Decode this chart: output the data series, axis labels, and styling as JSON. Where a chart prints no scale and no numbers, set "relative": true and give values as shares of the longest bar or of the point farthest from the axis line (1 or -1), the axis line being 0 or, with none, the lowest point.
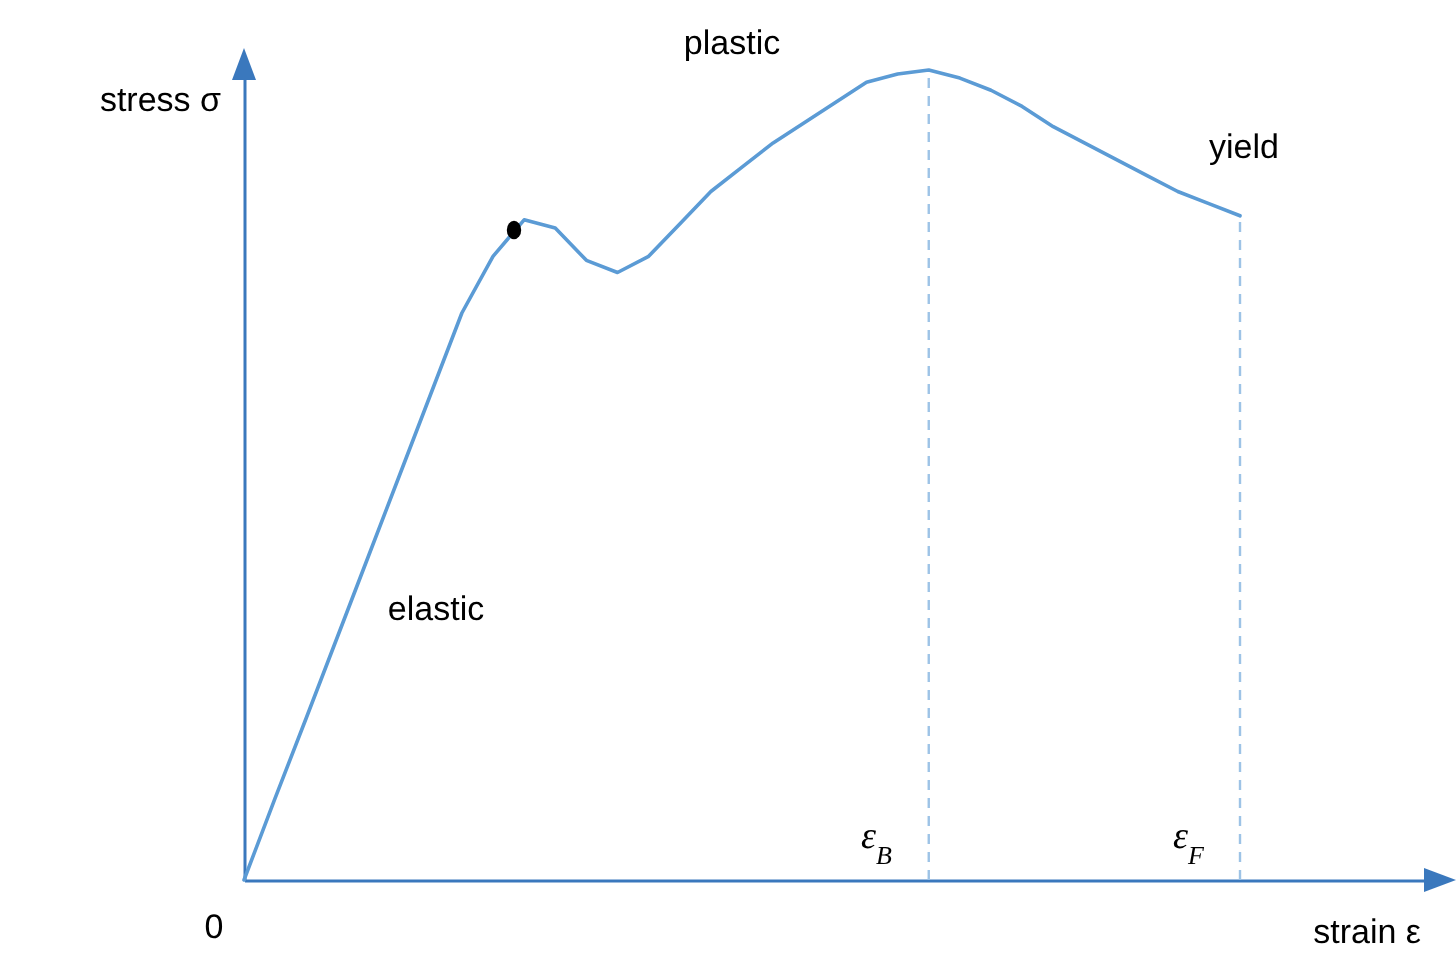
{
  "chart_data": {
    "type": "line",
    "relative": true,
    "xlabel": "strain ε",
    "ylabel": "stress σ",
    "categories": [
      null,
      null,
      null,
      null,
      null,
      null,
      null,
      null,
      null,
      null,
      null,
      null,
      null,
      null,
      null,
      null,
      null,
      null,
      null,
      null,
      null,
      null,
      null,
      null,
      null,
      null,
      null,
      null,
      null,
      null,
      null,
      null,
      null
    ],
    "series": [
      {
        "color": "#5b9bd5",
        "values": [
          0,
          0.101,
          0.2,
          0.3,
          0.4,
          0.5,
          0.6,
          0.7,
          0.77,
          0.815,
          0.805,
          0.765,
          0.75,
          0.77,
          0.81,
          0.85,
          0.88,
          0.91,
          0.935,
          0.96,
          0.985,
          0.995,
          1,
          0.99,
          0.975,
          0.955,
          0.93,
          0.91,
          0.89,
          0.87,
          0.85,
          0.835,
          0.82
        ]
      }
    ],
    "annotations": [
      "elastic",
      "plastic",
      "yield",
      "0",
      "ε$_{B}$",
      "ε$_{F}$"
    ],
    "grid": false,
    "marker": "none",
    "line_style": "solid"
  }
}
